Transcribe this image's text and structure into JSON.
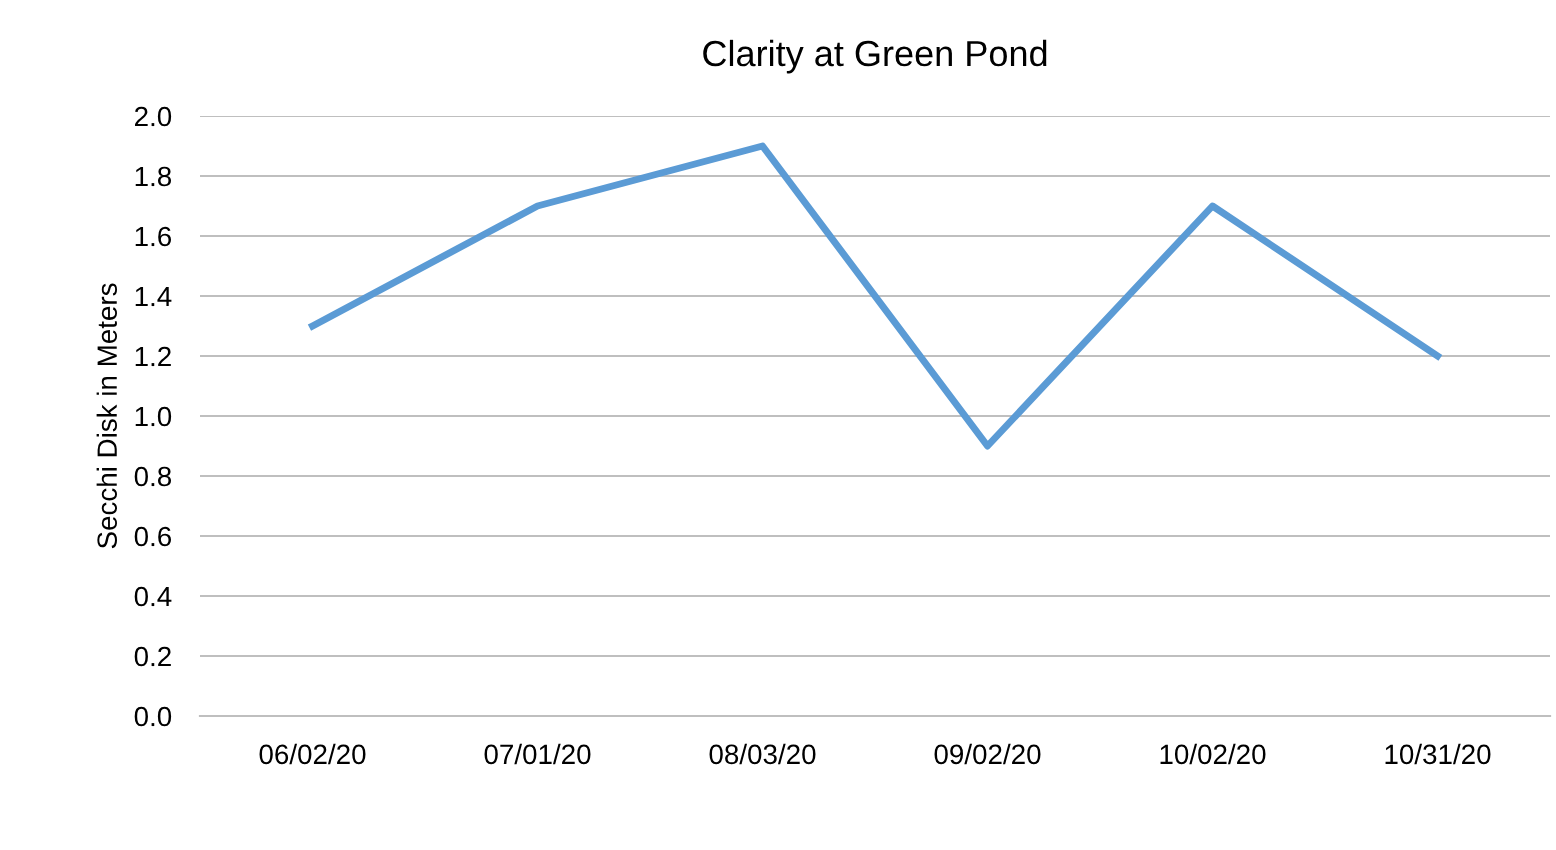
{
  "chart_data": {
    "type": "line",
    "title": "Clarity at Green Pond",
    "ylabel": "Secchi Disk in Meters",
    "categories": [
      "06/02/20",
      "07/01/20",
      "08/03/20",
      "09/02/20",
      "10/02/20",
      "10/31/20"
    ],
    "series": [
      {
        "color": "#5b9bd5",
        "values": [
          1.3,
          1.7,
          1.9,
          0.9,
          1.7,
          1.2
        ]
      }
    ],
    "ylim": [
      0,
      2
    ],
    "yticks": [
      {
        "value": 0,
        "label": "0.0"
      },
      {
        "value": 0.2,
        "label": "0.2"
      },
      {
        "value": 0.4,
        "label": "0.4"
      },
      {
        "value": 0.6,
        "label": "0.6"
      },
      {
        "value": 0.8,
        "label": "0.8"
      },
      {
        "value": 1.0,
        "label": "1.0"
      },
      {
        "value": 1.2,
        "label": "1.2"
      },
      {
        "value": 1.4,
        "label": "1.4"
      },
      {
        "value": 1.6,
        "label": "1.6"
      },
      {
        "value": 1.8,
        "label": "1.8"
      },
      {
        "value": 2.0,
        "label": "2.0"
      }
    ],
    "grid": "y",
    "marker": "none",
    "line_style": "solid"
  }
}
